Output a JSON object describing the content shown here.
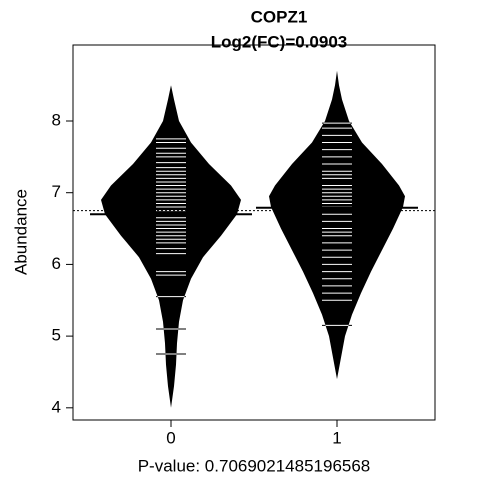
{
  "chart_data": {
    "type": "bean",
    "title": "COPZ1",
    "subtitle": "Log2(FC)=0.0903",
    "y_label": "Abundance",
    "x_label": "P-value: 0.7069021485196568",
    "categories": [
      "0",
      "1"
    ],
    "ylim": [
      3.83,
      9.06
    ],
    "yticks": [
      4,
      5,
      6,
      7,
      8
    ],
    "color": "#000000",
    "line_color": "#ffffff",
    "overall_mean": 6.75,
    "series": [
      {
        "group_mean": 6.7,
        "density_y": [
          4.0,
          4.3,
          4.6,
          4.9,
          5.2,
          5.5,
          5.8,
          6.1,
          6.4,
          6.7,
          6.9,
          7.1,
          7.4,
          7.7,
          8.0,
          8.3,
          8.5
        ],
        "density": [
          0,
          3,
          5,
          6,
          8,
          12,
          20,
          32,
          50,
          66,
          70,
          60,
          38,
          20,
          8,
          3,
          0
        ],
        "points": [
          7.75,
          7.7,
          7.62,
          7.55,
          7.5,
          7.42,
          7.35,
          7.3,
          7.25,
          7.2,
          7.15,
          7.1,
          7.05,
          7.0,
          6.95,
          6.9,
          6.85,
          6.8,
          6.75,
          6.7,
          6.65,
          6.6,
          6.55,
          6.5,
          6.45,
          6.4,
          6.35,
          6.3,
          6.22,
          6.15,
          5.9,
          5.85,
          5.55,
          5.1,
          4.75
        ]
      },
      {
        "group_mean": 6.79,
        "density_y": [
          4.4,
          4.7,
          5.0,
          5.3,
          5.6,
          5.9,
          6.2,
          6.5,
          6.8,
          6.95,
          7.1,
          7.4,
          7.7,
          8.0,
          8.3,
          8.5,
          8.7
        ],
        "density": [
          0,
          4,
          8,
          15,
          24,
          34,
          45,
          56,
          66,
          68,
          62,
          45,
          25,
          12,
          5,
          2,
          0
        ],
        "points": [
          7.97,
          7.9,
          7.8,
          7.7,
          7.6,
          7.5,
          7.4,
          7.3,
          7.25,
          7.2,
          7.1,
          7.05,
          7.0,
          6.95,
          6.9,
          6.85,
          6.8,
          6.7,
          6.6,
          6.5,
          6.45,
          6.4,
          6.3,
          6.2,
          6.1,
          6.0,
          5.9,
          5.8,
          5.7,
          5.6,
          5.5,
          5.15
        ]
      }
    ]
  }
}
